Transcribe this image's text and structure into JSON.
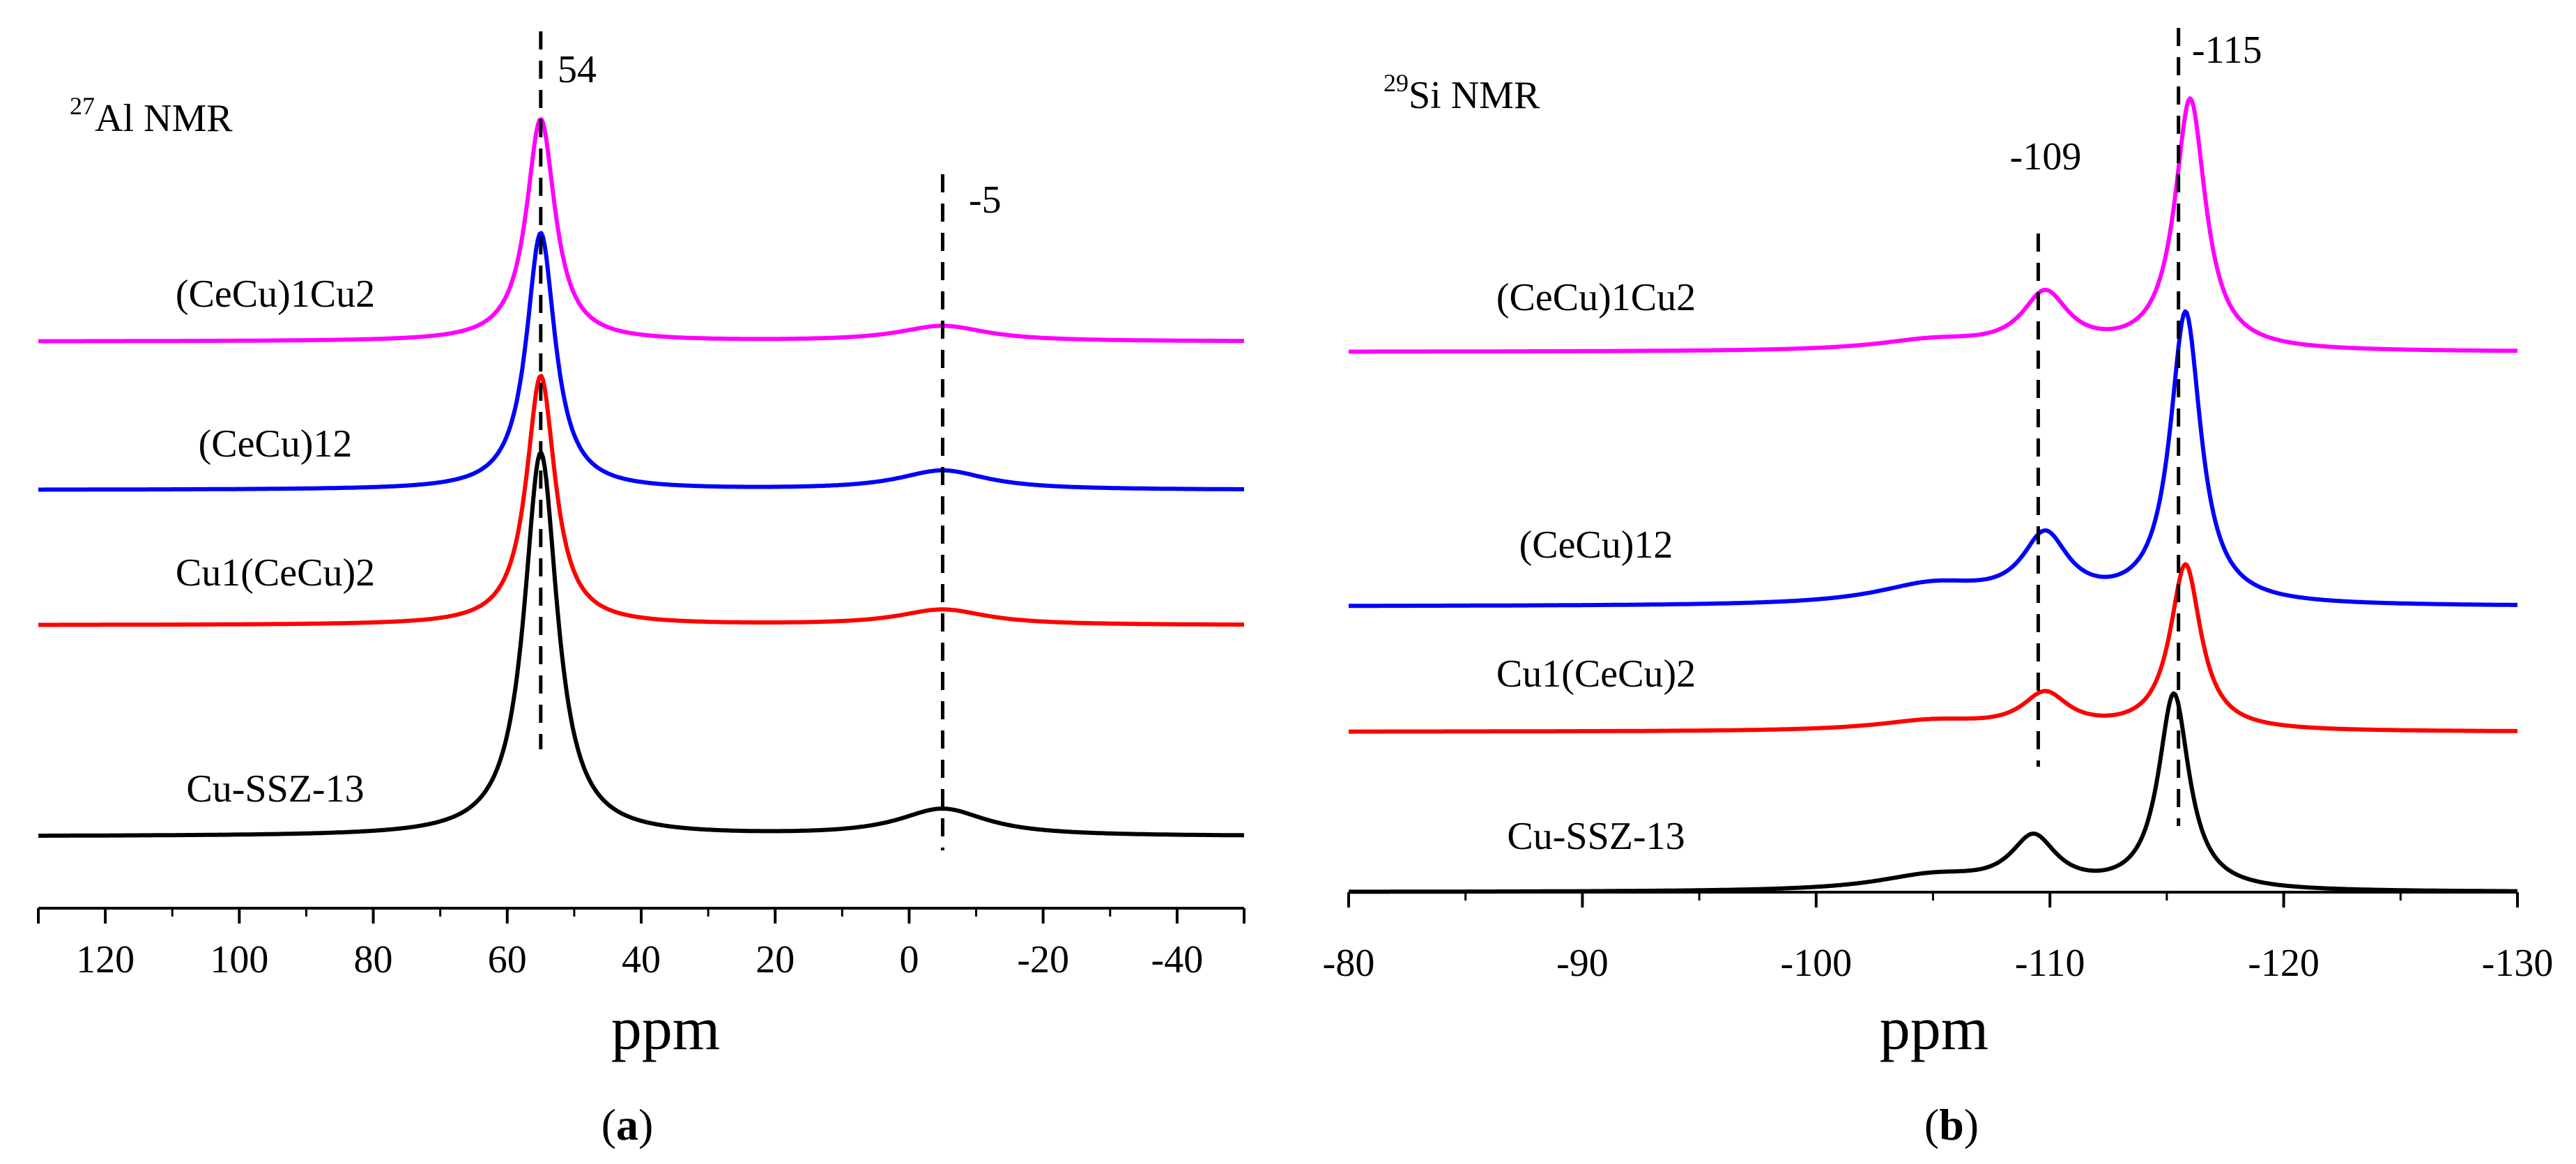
{
  "chart_data": [
    {
      "type": "line",
      "panel": "a",
      "title_sup": "27",
      "title": "Al NMR",
      "xlabel": "ppm",
      "xlim": [
        130,
        -50
      ],
      "xticks": [
        120,
        100,
        80,
        60,
        40,
        20,
        0,
        -20,
        -40
      ],
      "xtick_labels": [
        "120",
        "100",
        "80",
        "60",
        "40",
        "20",
        "0",
        "-20",
        "-40"
      ],
      "reference_lines": [
        {
          "x": 55,
          "label": "54"
        },
        {
          "x": -5,
          "label": "-5"
        }
      ],
      "series": [
        {
          "name": "(CeCu)1Cu2",
          "color": "#ff00ff",
          "baseline": 0.63,
          "peaks": [
            {
              "x": 55,
              "h": 0.58,
              "w": 2.6
            },
            {
              "x": -5,
              "h": 0.04,
              "w": 8
            }
          ]
        },
        {
          "name": "(CeCu)12",
          "color": "#0000ff",
          "baseline": 0.44,
          "peaks": [
            {
              "x": 55,
              "h": 0.67,
              "w": 2.6
            },
            {
              "x": -5,
              "h": 0.05,
              "w": 8
            }
          ]
        },
        {
          "name": "Cu1(CeCu)2",
          "color": "#ff0000",
          "baseline": 0.27,
          "peaks": [
            {
              "x": 55,
              "h": 0.65,
              "w": 2.6
            },
            {
              "x": -5,
              "h": 0.04,
              "w": 8
            }
          ]
        },
        {
          "name": "Cu-SSZ-13",
          "color": "#000000",
          "baseline": 0.0,
          "peaks": [
            {
              "x": 55,
              "h": 1.0,
              "w": 3.0
            },
            {
              "x": -5,
              "h": 0.07,
              "w": 8
            }
          ]
        }
      ],
      "caption": "a"
    },
    {
      "type": "line",
      "panel": "b",
      "title_sup": "29",
      "title": "Si NMR",
      "xlabel": "ppm",
      "xlim": [
        -80,
        -130
      ],
      "xticks": [
        -80,
        -90,
        -100,
        -110,
        -120,
        -130
      ],
      "xtick_labels": [
        "-80",
        "-90",
        "-100",
        "-110",
        "-120",
        "-130"
      ],
      "reference_lines": [
        {
          "x": -109.5,
          "label": "-109"
        },
        {
          "x": -115.5,
          "label": "-115"
        }
      ],
      "series": [
        {
          "name": "(CeCu)1Cu2",
          "color": "#ff00ff",
          "baseline": 0.71,
          "peaks": [
            {
              "x": -116,
              "h": 0.5,
              "w": 0.8
            },
            {
              "x": -109.8,
              "h": 0.11,
              "w": 1.2
            },
            {
              "x": -105,
              "h": 0.02,
              "w": 3
            }
          ]
        },
        {
          "name": "(CeCu)12",
          "color": "#0000ff",
          "baseline": 0.39,
          "peaks": [
            {
              "x": -115.8,
              "h": 0.58,
              "w": 0.8
            },
            {
              "x": -109.8,
              "h": 0.13,
              "w": 1.2
            },
            {
              "x": -105,
              "h": 0.04,
              "w": 3
            }
          ]
        },
        {
          "name": "Cu1(CeCu)2",
          "color": "#ff0000",
          "baseline": 0.22,
          "peaks": [
            {
              "x": -115.8,
              "h": 0.33,
              "w": 0.8
            },
            {
              "x": -109.8,
              "h": 0.07,
              "w": 1.2
            },
            {
              "x": -105,
              "h": 0.02,
              "w": 3
            }
          ]
        },
        {
          "name": "Cu-SSZ-13",
          "color": "#000000",
          "baseline": 0.0,
          "peaks": [
            {
              "x": -115.3,
              "h": 0.39,
              "w": 0.8
            },
            {
              "x": -109.3,
              "h": 0.1,
              "w": 1.2
            },
            {
              "x": -105,
              "h": 0.03,
              "w": 3
            }
          ]
        }
      ],
      "caption": "b"
    }
  ]
}
